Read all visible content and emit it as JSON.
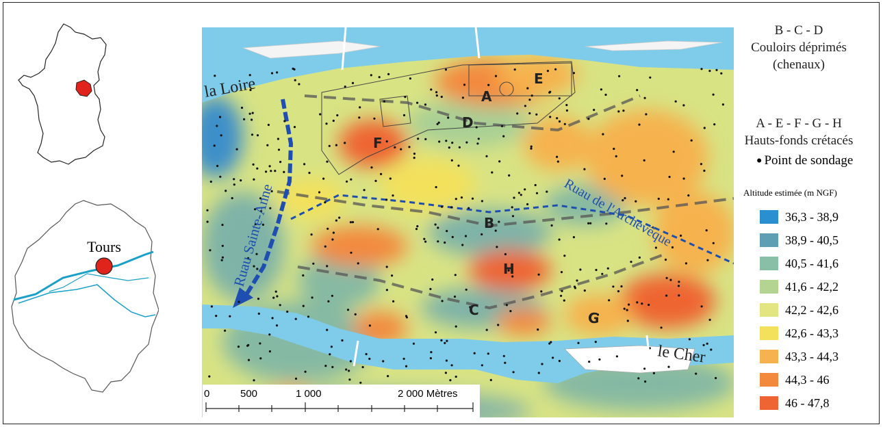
{
  "insets": {
    "city_label": "Tours"
  },
  "map": {
    "rivers": {
      "loire": "la Loire",
      "cher": "le Cher"
    },
    "channels": {
      "sainte_anne": "Ruau Sainte-Anne",
      "archeveque": "Ruau de l'Archevêque"
    },
    "zones": {
      "A": "A",
      "B": "B",
      "C": "C",
      "D": "D",
      "E": "E",
      "F": "F",
      "G": "G",
      "H": "H"
    }
  },
  "legend": {
    "depressions_title": "B - C - D",
    "depressions_line1": "Couloirs déprimés",
    "depressions_line2": "(chenaux)",
    "highs_title": "A - E - F - G - H",
    "highs_line": "Hauts-fonds crétacés",
    "point_label": "Point de sondage",
    "altitude_title": "Altitude estimée (m NGF)",
    "classes": [
      {
        "label": "36,3 - 38,9",
        "color": "#2a8fd0"
      },
      {
        "label": "38,9 - 40,5",
        "color": "#5f9fb3"
      },
      {
        "label": "40,5 - 41,6",
        "color": "#88bfa6"
      },
      {
        "label": "41,6 - 42,2",
        "color": "#b4d591"
      },
      {
        "label": "42,2 - 42,6",
        "color": "#e3e583"
      },
      {
        "label": "42,6 - 43,3",
        "color": "#f3e15c"
      },
      {
        "label": "43,3 - 44,3",
        "color": "#f6b24e"
      },
      {
        "label": "44,3 - 46",
        "color": "#f3893d"
      },
      {
        "label": "46 - 47,8",
        "color": "#ee6533"
      }
    ]
  },
  "scalebar": {
    "t0": "0",
    "t1": "500",
    "t2": "1 000",
    "t3": "2 000 Mètres"
  },
  "colors": {
    "water": "#7ecbea",
    "france_highlight": "#e0241c",
    "river_line": "#1aa0c8"
  }
}
